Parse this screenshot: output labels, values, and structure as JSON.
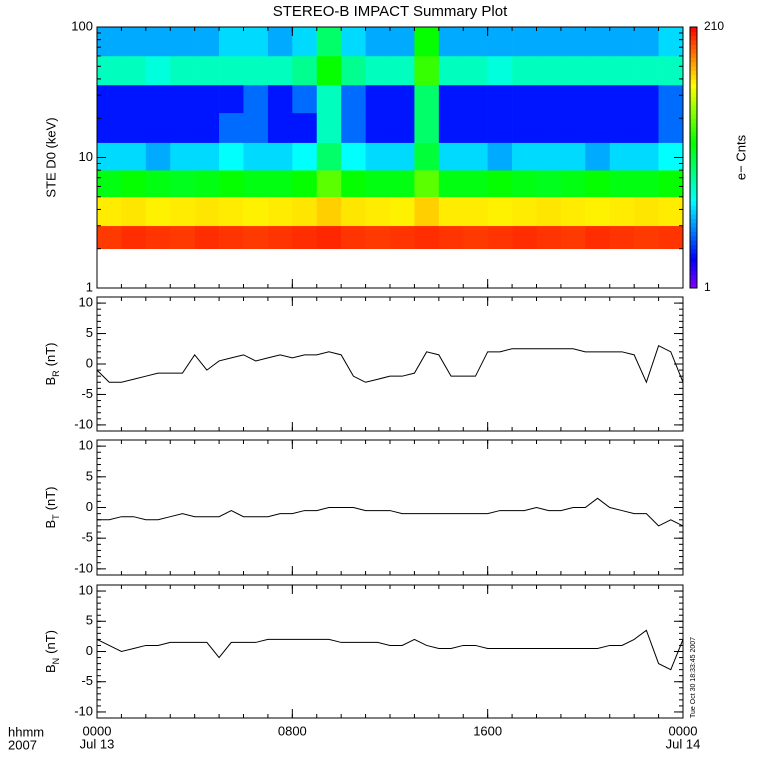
{
  "chart_data": [
    {
      "type": "heatmap",
      "title": "STEREO-B IMPACT Summary Plot",
      "ylabel": "STE D0 (keV)",
      "log_y": true,
      "xlim": [
        0,
        24
      ],
      "ylim": [
        1,
        100
      ],
      "yticks": [
        1,
        10,
        100
      ],
      "xbins": [
        0,
        1,
        2,
        3,
        4,
        5,
        6,
        7,
        8,
        9,
        10,
        11,
        12,
        13,
        14,
        15,
        16,
        17,
        18,
        19,
        20,
        21,
        22,
        23,
        24
      ],
      "ybins": [
        2,
        3,
        5,
        8,
        13,
        22,
        36,
        60,
        100
      ],
      "zlim": [
        1,
        210
      ],
      "zticks": [
        1,
        210
      ],
      "zlabel": "e− Cnts",
      "colormap": "rainbow",
      "log_z": true,
      "values": [
        [
          160,
          170,
          165,
          160,
          170,
          165,
          160,
          165,
          170,
          175,
          165,
          160,
          165,
          170,
          165,
          160,
          165,
          170,
          165,
          160,
          170,
          165,
          160,
          165
        ],
        [
          70,
          72,
          68,
          70,
          72,
          70,
          68,
          70,
          72,
          80,
          72,
          70,
          68,
          80,
          70,
          70,
          68,
          70,
          72,
          70,
          68,
          70,
          72,
          70
        ],
        [
          18,
          20,
          18,
          17,
          18,
          20,
          18,
          18,
          20,
          30,
          20,
          18,
          18,
          30,
          18,
          18,
          20,
          18,
          17,
          18,
          20,
          18,
          18,
          20
        ],
        [
          5,
          5,
          4,
          5,
          5,
          6,
          5,
          5,
          6,
          12,
          6,
          5,
          5,
          15,
          5,
          5,
          4,
          5,
          5,
          5,
          4,
          5,
          5,
          6
        ],
        [
          2,
          2,
          2,
          2,
          2,
          3,
          3,
          2,
          2,
          8,
          3,
          2,
          2,
          12,
          2,
          2,
          2,
          2,
          2,
          2,
          2,
          2,
          2,
          3
        ],
        [
          2,
          2,
          2,
          2,
          2,
          2,
          3,
          2,
          3,
          8,
          3,
          2,
          2,
          12,
          2,
          2,
          2,
          2,
          2,
          2,
          2,
          2,
          2,
          3
        ],
        [
          8,
          8,
          7,
          8,
          8,
          8,
          8,
          8,
          10,
          20,
          10,
          8,
          8,
          25,
          8,
          8,
          7,
          8,
          8,
          8,
          8,
          8,
          8,
          8
        ],
        [
          4,
          4,
          4,
          4,
          4,
          5,
          5,
          4,
          5,
          12,
          5,
          4,
          4,
          20,
          4,
          4,
          4,
          4,
          4,
          4,
          4,
          4,
          4,
          5
        ]
      ]
    },
    {
      "type": "line",
      "ylabel_symbol": "B",
      "ylabel_subscript": "R",
      "ylabel_unit": "(nT)",
      "color": "#000000",
      "xlim": [
        0,
        24
      ],
      "ylim": [
        -11,
        11
      ],
      "yticks": [
        -10,
        -5,
        0,
        5,
        10
      ],
      "x": [
        0,
        0.5,
        1,
        1.5,
        2,
        2.5,
        3,
        3.5,
        4,
        4.5,
        5,
        5.5,
        6,
        6.5,
        7,
        7.5,
        8,
        8.5,
        9,
        9.5,
        10,
        10.5,
        11,
        11.5,
        12,
        12.5,
        13,
        13.5,
        14,
        14.5,
        15,
        15.5,
        16,
        16.5,
        17,
        17.5,
        18,
        18.5,
        19,
        19.5,
        20,
        20.5,
        21,
        21.5,
        22,
        22.5,
        23,
        23.5,
        24
      ],
      "values": [
        -1,
        -3,
        -3,
        -2.5,
        -2,
        -1.5,
        -1.5,
        -1.5,
        1.5,
        -1,
        0.5,
        1,
        1.5,
        0.5,
        1,
        1.5,
        1,
        1.5,
        1.5,
        2,
        1.5,
        -2,
        -3,
        -2.5,
        -2,
        -2,
        -1.5,
        2,
        1.5,
        -2,
        -2,
        -2,
        2,
        2,
        2.5,
        2.5,
        2.5,
        2.5,
        2.5,
        2.5,
        2,
        2,
        2,
        2,
        1.5,
        -3,
        3,
        2,
        -3
      ]
    },
    {
      "type": "line",
      "ylabel_symbol": "B",
      "ylabel_subscript": "T",
      "ylabel_unit": "(nT)",
      "color": "#000000",
      "xlim": [
        0,
        24
      ],
      "ylim": [
        -11,
        11
      ],
      "yticks": [
        -10,
        -5,
        0,
        5,
        10
      ],
      "x": [
        0,
        0.5,
        1,
        1.5,
        2,
        2.5,
        3,
        3.5,
        4,
        4.5,
        5,
        5.5,
        6,
        6.5,
        7,
        7.5,
        8,
        8.5,
        9,
        9.5,
        10,
        10.5,
        11,
        11.5,
        12,
        12.5,
        13,
        13.5,
        14,
        14.5,
        15,
        15.5,
        16,
        16.5,
        17,
        17.5,
        18,
        18.5,
        19,
        19.5,
        20,
        20.5,
        21,
        21.5,
        22,
        22.5,
        23,
        23.5,
        24
      ],
      "values": [
        -2,
        -2,
        -1.5,
        -1.5,
        -2,
        -2,
        -1.5,
        -1,
        -1.5,
        -1.5,
        -1.5,
        -0.5,
        -1.5,
        -1.5,
        -1.5,
        -1,
        -1,
        -0.5,
        -0.5,
        0,
        0,
        0,
        -0.5,
        -0.5,
        -0.5,
        -1,
        -1,
        -1,
        -1,
        -1,
        -1,
        -1,
        -1,
        -0.5,
        -0.5,
        -0.5,
        0,
        -0.5,
        -0.5,
        0,
        0,
        1.5,
        0,
        -0.5,
        -1,
        -1,
        -3,
        -2,
        -3
      ]
    },
    {
      "type": "line",
      "ylabel_symbol": "B",
      "ylabel_subscript": "N",
      "ylabel_unit": "(nT)",
      "color": "#000000",
      "xlim": [
        0,
        24
      ],
      "ylim": [
        -11,
        11
      ],
      "yticks": [
        -10,
        -5,
        0,
        5,
        10
      ],
      "xticks": [
        {
          "value": 0,
          "label": "0000"
        },
        {
          "value": 8,
          "label": "0800"
        },
        {
          "value": 16,
          "label": "1600"
        },
        {
          "value": 24,
          "label": "0000"
        }
      ],
      "xdates": [
        {
          "value": 0,
          "label": "Jul 13"
        },
        {
          "value": 24,
          "label": "Jul 14"
        }
      ],
      "xlabel": "hhmm",
      "year": "2007",
      "timestamp": "Tue Oct 30 18:33:45 2007",
      "x": [
        0,
        0.5,
        1,
        1.5,
        2,
        2.5,
        3,
        3.5,
        4,
        4.5,
        5,
        5.5,
        6,
        6.5,
        7,
        7.5,
        8,
        8.5,
        9,
        9.5,
        10,
        10.5,
        11,
        11.5,
        12,
        12.5,
        13,
        13.5,
        14,
        14.5,
        15,
        15.5,
        16,
        16.5,
        17,
        17.5,
        18,
        18.5,
        19,
        19.5,
        20,
        20.5,
        21,
        21.5,
        22,
        22.5,
        23,
        23.5,
        24
      ],
      "values": [
        2,
        1,
        0,
        0.5,
        1,
        1,
        1.5,
        1.5,
        1.5,
        1.5,
        -1,
        1.5,
        1.5,
        1.5,
        2,
        2,
        2,
        2,
        2,
        2,
        1.5,
        1.5,
        1.5,
        1.5,
        1,
        1,
        2,
        1,
        0.5,
        0.5,
        1,
        1,
        0.5,
        0.5,
        0.5,
        0.5,
        0.5,
        0.5,
        0.5,
        0.5,
        0.5,
        0.5,
        1,
        1,
        2,
        3.5,
        -2,
        -3,
        2
      ]
    }
  ]
}
